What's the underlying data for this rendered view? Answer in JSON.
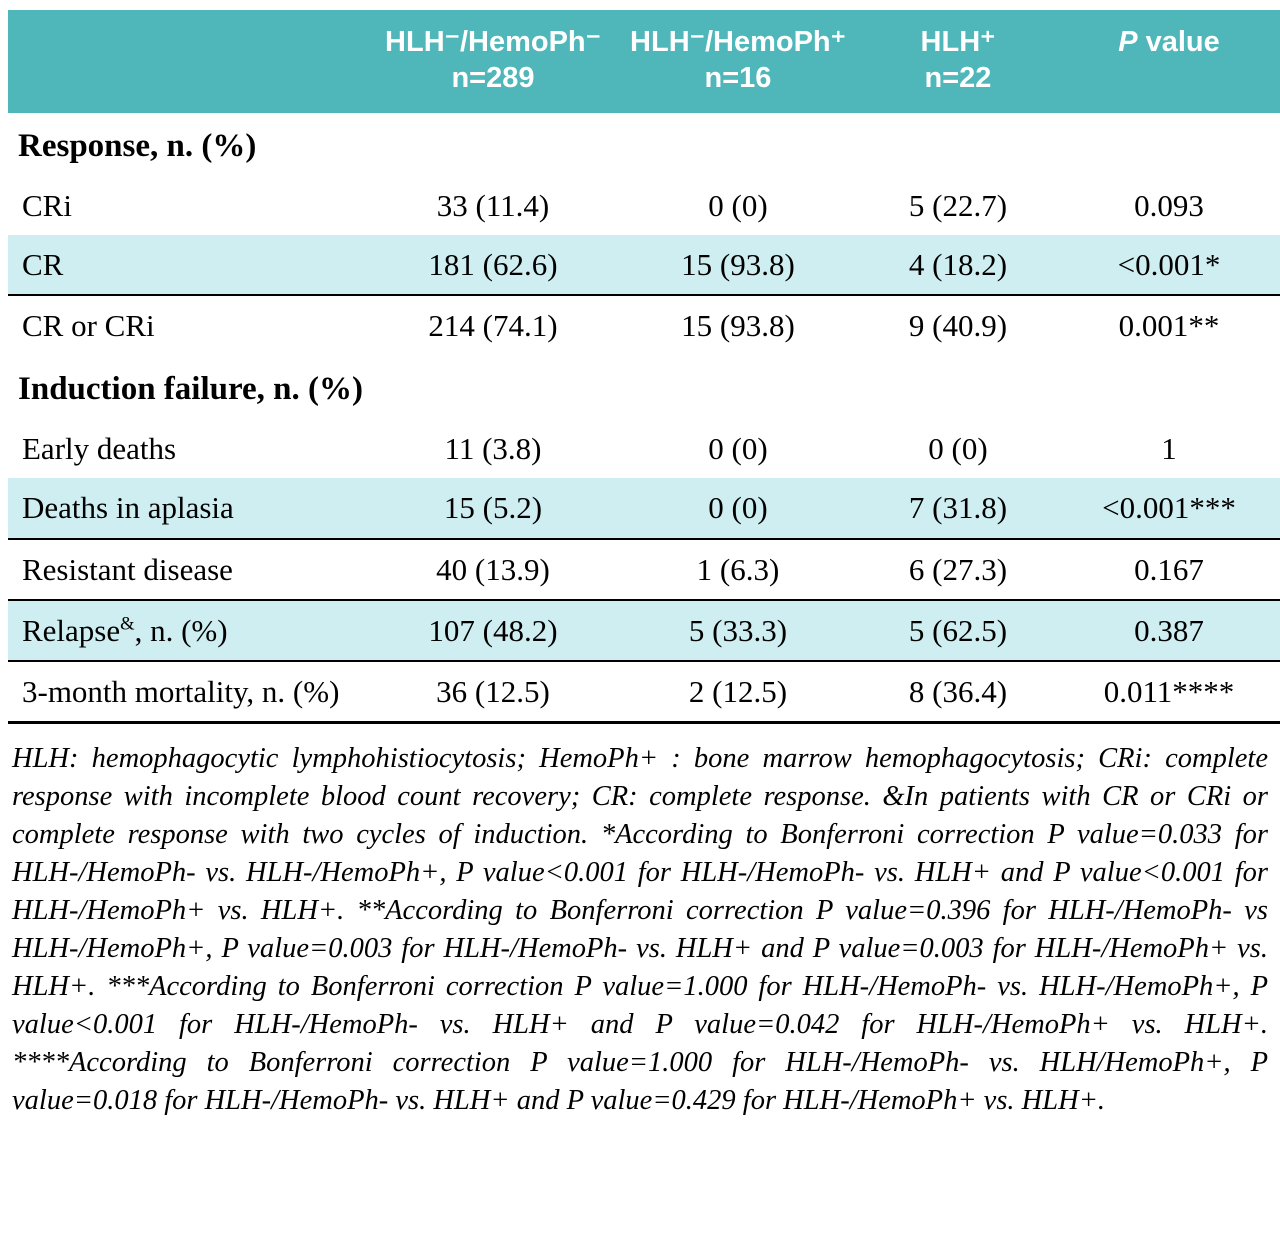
{
  "colors": {
    "header_teal": "#4fb6b9",
    "row_teal": "#cfeef1",
    "rule_black": "#000000"
  },
  "table": {
    "header": {
      "cols": [
        {
          "line1": "HLH⁻/HemoPh⁻",
          "line2": "n=289"
        },
        {
          "line1": "HLH⁻/HemoPh⁺",
          "line2": "n=16"
        },
        {
          "line1": "HLH⁺",
          "line2": "n=22"
        },
        {
          "line1_italic": "P",
          "line1_rest": " value"
        }
      ]
    },
    "rows": [
      {
        "kind": "section",
        "label": "Response, n. (%)"
      },
      {
        "kind": "data",
        "label": "CRi",
        "c1": "33 (11.4)",
        "c2": "0 (0)",
        "c3": "5 (22.7)",
        "p": "0.093"
      },
      {
        "kind": "data",
        "label": "CR",
        "c1": "181 (62.6)",
        "c2": "15 (93.8)",
        "c3": "4 (18.2)",
        "p": "<0.001*"
      },
      {
        "kind": "data",
        "label": "CR or CRi",
        "c1": "214 (74.1)",
        "c2": "15 (93.8)",
        "c3": "9 (40.9)",
        "p": "0.001**"
      },
      {
        "kind": "section",
        "label": "Induction failure, n. (%)"
      },
      {
        "kind": "data",
        "label": "Early deaths",
        "c1": "11 (3.8)",
        "c2": "0 (0)",
        "c3": "0 (0)",
        "p": "1"
      },
      {
        "kind": "data",
        "label": "Deaths in aplasia",
        "c1": "15 (5.2)",
        "c2": "0 (0)",
        "c3": "7 (31.8)",
        "p": "<0.001***"
      },
      {
        "kind": "data",
        "label": "Resistant disease",
        "c1": "40 (13.9)",
        "c2": "1 (6.3)",
        "c3": "6 (27.3)",
        "p": "0.167"
      },
      {
        "kind": "data",
        "label_pre": "Relapse",
        "label_sup": "&",
        "label_post": ", n. (%)",
        "c1": "107 (48.2)",
        "c2": "5 (33.3)",
        "c3": "5 (62.5)",
        "p": "0.387"
      },
      {
        "kind": "data",
        "label": "3-month mortality, n. (%)",
        "c1": "36 (12.5)",
        "c2": "2 (12.5)",
        "c3": "8 (36.4)",
        "p": "0.011****"
      }
    ]
  },
  "footnote": {
    "text": "HLH: hemophagocytic lymphohistiocytosis; HemoPh+ : bone marrow hemophagocytosis; CRi: complete response with incomplete blood count recovery; CR: complete response. &In patients with CR or CRi or complete response with two cycles of induction. *According to Bonferroni correction P value=0.033 for HLH-/HemoPh- vs. HLH-/HemoPh+, P value<0.001 for HLH-/HemoPh- vs. HLH+ and P value<0.001 for HLH-/HemoPh+ vs. HLH+. **According to Bonferroni correction P value=0.396 for HLH-/HemoPh- vs HLH-/HemoPh+, P value=0.003 for HLH-/HemoPh- vs. HLH+ and P value=0.003 for HLH-/HemoPh+ vs. HLH+. ***According to Bonferroni correction P value=1.000 for HLH-/HemoPh- vs. HLH-/HemoPh+, P value<0.001 for HLH-/HemoPh- vs. HLH+ and P value=0.042 for HLH-/HemoPh+ vs. HLH+. ****According to Bonferroni correction P value=1.000 for HLH-/HemoPh- vs. HLH/HemoPh+, P value=0.018 for HLH-/HemoPh- vs. HLH+ and P value=0.429 for HLH-/HemoPh+ vs. HLH+."
  }
}
